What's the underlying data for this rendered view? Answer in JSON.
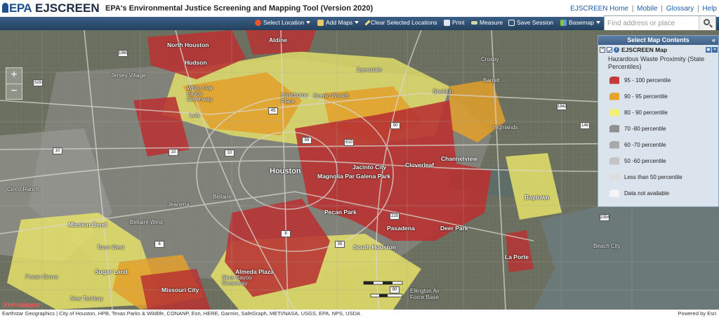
{
  "header": {
    "logo_epa": "EPA",
    "logo_app": "EJSCREEN",
    "subtitle": "EPA's Environmental Justice Screening and Mapping Tool (Version 2020)",
    "links": [
      "EJSCREEN Home",
      "Mobile",
      "Glossary",
      "Help"
    ],
    "link_separator": "|"
  },
  "toolbar": {
    "select_location": "Select Location",
    "add_maps": "Add Maps",
    "clear_locations": "Clear Selected Locations",
    "print": "Print",
    "measure": "Measure",
    "save_session": "Save Session",
    "basemap": "Basemap"
  },
  "search": {
    "placeholder": "Find address or place",
    "value": ""
  },
  "map": {
    "places": {
      "north_houston": "North Houston",
      "aldine": "Aldine",
      "hudson": "Hudson",
      "jersey_village": "Jersey Village",
      "white_oak": "White Oak\nBayou\nGreenway",
      "dyersdale": "Dyersdale",
      "hawthorne": "Hawthorne\nPlace",
      "scenic_woods": "Scenic Woods",
      "sheldon": "Sheldon",
      "crosby": "Crosby",
      "barrett": "Barrett",
      "lois": "Lois",
      "highlands": "Highlands",
      "houston": "Houston",
      "jacinto_city": "Jacinto City",
      "cloverleaf": "Cloverleaf",
      "channelview": "Channelview",
      "cinco_ranch": "Cinco Ranch",
      "magnolia_park": "Magnolia Par",
      "galena_park": "Galena Park",
      "jeanetta": "Jeanetta",
      "bellaire": "Bellaire",
      "baytown": "Baytown",
      "mission_bend": "Mission Bend",
      "bellaire_west": "Bellaire West",
      "pecan_park": "Pecan Park",
      "pasadena": "Pasadena",
      "deer_park": "Deer Park",
      "town_west": "Town West",
      "south_houston": "South Houston",
      "beach_city": "Beach City",
      "sugar_land": "Sugar Land",
      "almeda_plaza": "Almeda Plaza",
      "la_porte": "La Porte",
      "pecan_grove": "Pecan Grove",
      "missouri_city": "Missouri City",
      "sims_bayou": "Sims Bayou\nGreenway",
      "ellington": "Ellington Air\nForce Base",
      "new_territory": "New Territory"
    },
    "shields": {
      "s1960": "1960",
      "s529": "529",
      "s90": "90",
      "s1942": "1942",
      "s146": "146",
      "s10a": "10",
      "s10b": "10",
      "s10c": "10",
      "s610": "610",
      "s45": "45",
      "s59": "59",
      "s35": "35",
      "s2354": "2354",
      "s225": "225",
      "s8": "8",
      "s6": "6",
      "s90b": "90"
    }
  },
  "panel": {
    "title": "Select Map Contents",
    "collapse_glyph": "«",
    "layer_name": "EJSCREEN Map",
    "layer_description": "Hazardous Waste Proximity (State Percentiles)",
    "legend": [
      {
        "label": "95 - 100 percentile",
        "color": "#c23a3a"
      },
      {
        "label": "90 - 95 percentile",
        "color": "#e5a52b"
      },
      {
        "label": "80 - 90 percentile",
        "color": "#f3f07a"
      },
      {
        "label": "70 -80 percentile",
        "color": "#8f8f8f"
      },
      {
        "label": "60 -70 percentile",
        "color": "#a9a9a9"
      },
      {
        "label": "50 -60 percentile",
        "color": "#c4c4c4"
      },
      {
        "label": "Less than 50 percentile",
        "color": "#dedede"
      },
      {
        "label": "Data not available",
        "color": "#f4f4f7"
      }
    ]
  },
  "footer": {
    "attribution": "Earthstar Geographics | City of Houston, HPB, Texas Parks & Wildlife, CONANP, Esri, HERE, Garmin, SafeGraph, METI/NASA, USGS, EPA, NPS, USDA",
    "powered_by": "Powered by Esri",
    "enviromapper": "EnviroMapper"
  }
}
